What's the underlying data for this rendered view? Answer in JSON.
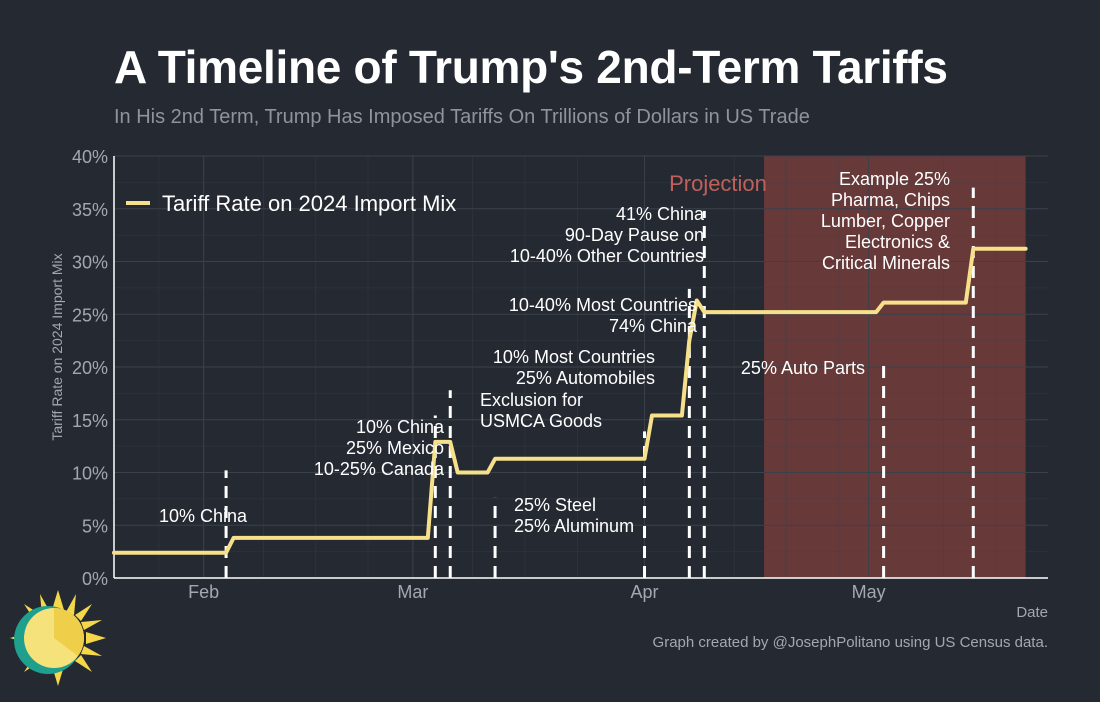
{
  "header": {
    "title": "A Timeline of Trump's 2nd-Term Tariffs",
    "subtitle": "In His 2nd Term, Trump Has Imposed Tariffs On Trillions of Dollars in US Trade"
  },
  "footer": {
    "credit": "Graph created by @JosephPolitano using US Census data."
  },
  "colors": {
    "background": "#252a32",
    "line": "#f7e08a",
    "projection": "#6e3b3a",
    "projection_text": "#c0605a",
    "grid": "#3b414b",
    "axis_text": "#a4a8ae"
  },
  "chart_data": {
    "type": "line",
    "title": "A Timeline of Trump's 2nd-Term Tariffs",
    "subtitle": "In His 2nd Term, Trump Has Imposed Tariffs On Trillions of Dollars in US Trade",
    "xlabel": "Date",
    "ylabel": "Tariff Rate on 2024 Import Mix",
    "xlim": [
      "2025-01-20",
      "2025-05-25"
    ],
    "ylim": [
      0,
      40
    ],
    "yticks": [
      "0%",
      "5%",
      "10%",
      "15%",
      "20%",
      "25%",
      "30%",
      "35%",
      "40%"
    ],
    "xticks": [
      {
        "date": "2025-02-01",
        "label": "Feb"
      },
      {
        "date": "2025-03-01",
        "label": "Mar"
      },
      {
        "date": "2025-04-01",
        "label": "Apr"
      },
      {
        "date": "2025-05-01",
        "label": "May"
      }
    ],
    "grid": true,
    "legend": "top-left",
    "series": [
      {
        "name": "Tariff Rate on 2024 Import Mix",
        "color": "#f7e08a",
        "points": [
          [
            "2025-01-20",
            2.4
          ],
          [
            "2025-02-04",
            2.4
          ],
          [
            "2025-02-05",
            3.8
          ],
          [
            "2025-03-03",
            3.8
          ],
          [
            "2025-03-04",
            12.9
          ],
          [
            "2025-03-06",
            12.9
          ],
          [
            "2025-03-07",
            10.0
          ],
          [
            "2025-03-11",
            10.0
          ],
          [
            "2025-03-12",
            11.3
          ],
          [
            "2025-04-01",
            11.3
          ],
          [
            "2025-04-02",
            15.4
          ],
          [
            "2025-04-06",
            15.4
          ],
          [
            "2025-04-07",
            22.5
          ],
          [
            "2025-04-08",
            26.3
          ],
          [
            "2025-04-09",
            25.2
          ],
          [
            "2025-05-02",
            25.2
          ],
          [
            "2025-05-03",
            26.1
          ],
          [
            "2025-05-14",
            26.1
          ],
          [
            "2025-05-15",
            31.2
          ],
          [
            "2025-05-22",
            31.2
          ]
        ]
      }
    ],
    "projection": {
      "start": "2025-04-17",
      "end": "2025-05-22",
      "label": "Projection"
    },
    "events": [
      {
        "date": "2025-02-04",
        "label": [
          "10% China"
        ]
      },
      {
        "date": "2025-03-04",
        "label": [
          "10% China",
          "25% Mexico",
          "10-25% Canada"
        ]
      },
      {
        "date": "2025-03-06",
        "label": [
          "Exclusion for",
          "USMCA Goods"
        ]
      },
      {
        "date": "2025-03-12",
        "label": [
          "25% Steel",
          "25% Aluminum"
        ]
      },
      {
        "date": "2025-04-02",
        "label": [
          "10% Most Countries",
          "25% Automobiles"
        ]
      },
      {
        "date": "2025-04-08",
        "label": [
          "10-40% Most Countries",
          "74% China"
        ]
      },
      {
        "date": "2025-04-09",
        "label": [
          "41% China",
          "90-Day Pause on",
          "10-40% Other Countries"
        ]
      },
      {
        "date": "2025-05-03",
        "label": [
          "25% Auto Parts"
        ]
      },
      {
        "date": "2025-05-15",
        "label": [
          "Example 25%",
          "Pharma, Chips",
          "Lumber, Copper",
          "Electronics &",
          "Critical Minerals"
        ]
      }
    ]
  }
}
